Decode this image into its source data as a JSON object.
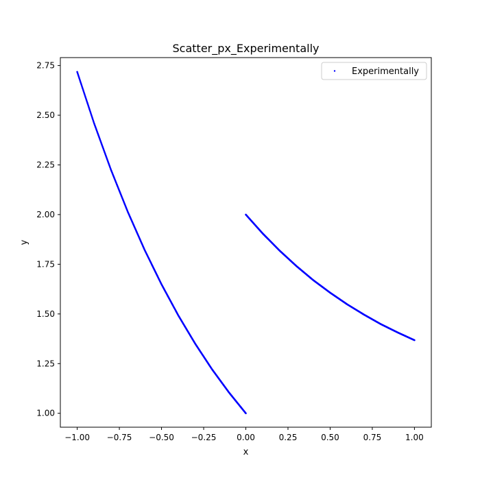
{
  "chart_data": {
    "type": "scatter",
    "title": "Scatter_px_Experimentally",
    "xlabel": "x",
    "ylabel": "y",
    "xlim": [
      -1.1,
      1.1
    ],
    "ylim": [
      0.93,
      2.79
    ],
    "x_ticks": [
      -1.0,
      -0.75,
      -0.5,
      -0.25,
      0.0,
      0.25,
      0.5,
      0.75,
      1.0
    ],
    "x_tick_labels": [
      "−1.00",
      "−0.75",
      "−0.50",
      "−0.25",
      "0.00",
      "0.25",
      "0.50",
      "0.75",
      "1.00"
    ],
    "y_ticks": [
      1.0,
      1.25,
      1.5,
      1.75,
      2.0,
      2.25,
      2.5,
      2.75
    ],
    "y_tick_labels": [
      "1.00",
      "1.25",
      "1.50",
      "1.75",
      "2.00",
      "2.25",
      "2.50",
      "2.75"
    ],
    "grid": false,
    "legend": {
      "position": "top-right"
    },
    "series": [
      {
        "name": "Experimentally",
        "color": "#0000ff",
        "marker": "point",
        "segments": [
          {
            "x": [
              -1.0,
              -0.9,
              -0.8,
              -0.7,
              -0.6,
              -0.5,
              -0.4,
              -0.3,
              -0.2,
              -0.1,
              0.0
            ],
            "y": [
              2.718,
              2.46,
              2.226,
              2.014,
              1.822,
              1.649,
              1.492,
              1.35,
              1.221,
              1.105,
              1.0
            ]
          },
          {
            "x": [
              0.0,
              0.1,
              0.2,
              0.3,
              0.4,
              0.5,
              0.6,
              0.7,
              0.8,
              0.9,
              1.0
            ],
            "y": [
              2.0,
              1.905,
              1.819,
              1.741,
              1.67,
              1.607,
              1.549,
              1.497,
              1.449,
              1.407,
              1.368
            ]
          }
        ]
      }
    ]
  }
}
